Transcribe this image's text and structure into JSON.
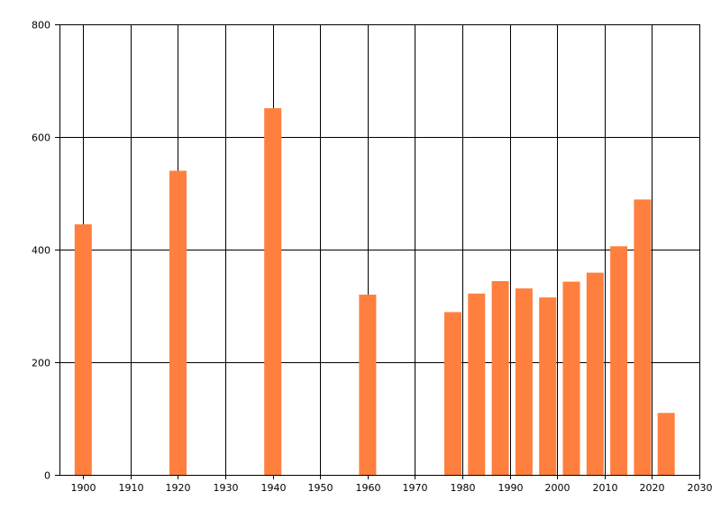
{
  "chart_data": {
    "type": "bar",
    "x": [
      1900,
      1920,
      1940,
      1960,
      1978,
      1983,
      1988,
      1993,
      1998,
      2003,
      2008,
      2013,
      2018,
      2023
    ],
    "values": [
      445,
      540,
      651,
      320,
      289,
      322,
      344,
      331,
      315,
      343,
      359,
      406,
      489,
      110
    ],
    "xlim": [
      1895,
      2030
    ],
    "ylim": [
      0,
      800
    ],
    "x_ticks": [
      1900,
      1910,
      1920,
      1930,
      1940,
      1950,
      1960,
      1970,
      1980,
      1990,
      2000,
      2010,
      2020,
      2030
    ],
    "y_ticks": [
      0,
      200,
      400,
      600,
      800
    ],
    "bar_color": "#ff7f3f",
    "grid": true,
    "title": "",
    "xlabel": "",
    "ylabel": ""
  }
}
